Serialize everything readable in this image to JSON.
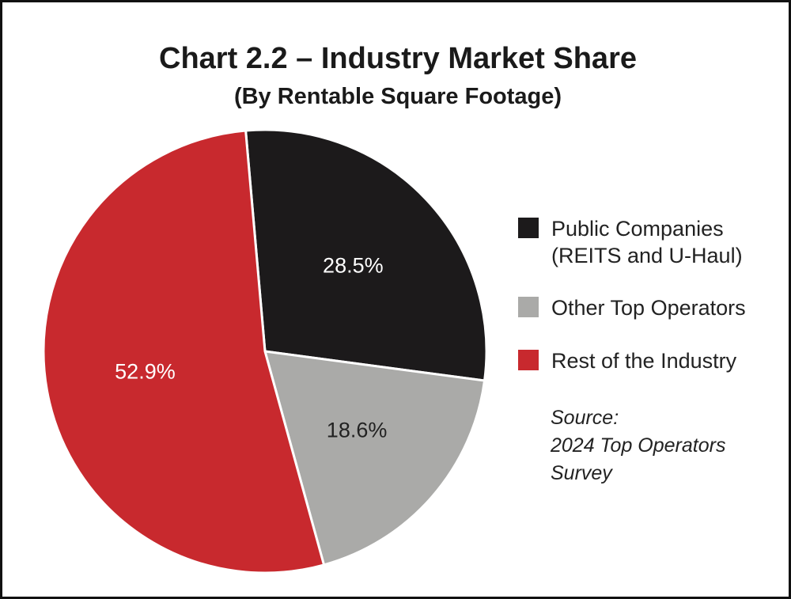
{
  "chart_data": {
    "type": "pie",
    "title": "Chart 2.2 – Industry Market Share",
    "subtitle": "(By Rentable Square Footage)",
    "series": [
      {
        "name": "Public Companies (REITS and U-Haul)",
        "color": "#1c1a1b",
        "values": [
          28.5
        ],
        "value_labels": [
          "28.5%"
        ]
      },
      {
        "name": "Other Top Operators",
        "color": "#aaaaa8",
        "values": [
          18.6
        ],
        "value_labels": [
          "18.6%"
        ]
      },
      {
        "name": "Rest of the Industry",
        "color": "#c8292e",
        "values": [
          52.9
        ],
        "value_labels": [
          "52.9%"
        ]
      }
    ],
    "source_label": "Source:",
    "source": "2024 Top Operators Survey"
  }
}
